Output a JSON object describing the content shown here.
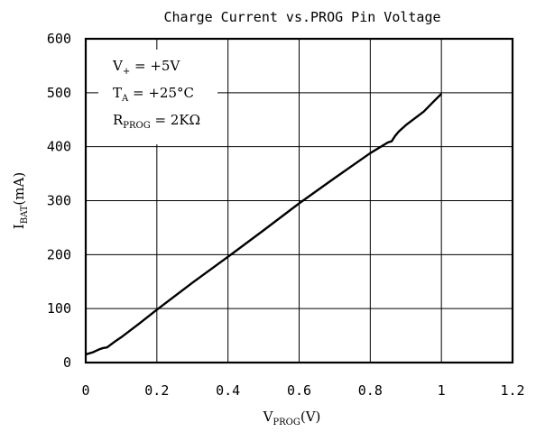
{
  "chart_data": {
    "type": "line",
    "title": "Charge Current vs.PROG Pin Voltage",
    "xlabel": {
      "main": "V",
      "sub": "PROG",
      "unit": "(V)"
    },
    "ylabel": {
      "main": "I",
      "sub": "BAT",
      "unit": "(mA)"
    },
    "xlim": [
      0,
      1.2
    ],
    "ylim": [
      0,
      600
    ],
    "x_ticks": [
      0,
      0.2,
      0.4,
      0.6,
      0.8,
      1,
      1.2
    ],
    "x_tick_labels": [
      "0",
      "0.2",
      "0.4",
      "0.6",
      "0.8",
      "1",
      "1.2"
    ],
    "y_ticks": [
      0,
      100,
      200,
      300,
      400,
      500,
      600
    ],
    "y_tick_labels": [
      "0",
      "100",
      "200",
      "300",
      "400",
      "500",
      "600"
    ],
    "grid": true,
    "conditions": [
      {
        "main": "V",
        "sub": "+",
        "value": " = +5V"
      },
      {
        "main": "T",
        "sub": "A",
        "value": " = +25°C"
      },
      {
        "main": "R",
        "sub": "PROG",
        "value": " = 2KΩ"
      }
    ],
    "series": [
      {
        "x": [
          0,
          0.01,
          0.02,
          0.03,
          0.04,
          0.05,
          0.06,
          0.08,
          0.1,
          0.15,
          0.2,
          0.3,
          0.4,
          0.5,
          0.6,
          0.7,
          0.8,
          0.85,
          0.86,
          0.87,
          0.88,
          0.9,
          0.95,
          0.98,
          1.0
        ],
        "y": [
          15,
          17,
          19,
          22,
          25,
          27,
          28,
          38,
          47,
          72,
          98,
          148,
          196,
          245,
          295,
          342,
          388,
          408,
          410,
          420,
          428,
          440,
          465,
          485,
          498
        ]
      }
    ]
  }
}
